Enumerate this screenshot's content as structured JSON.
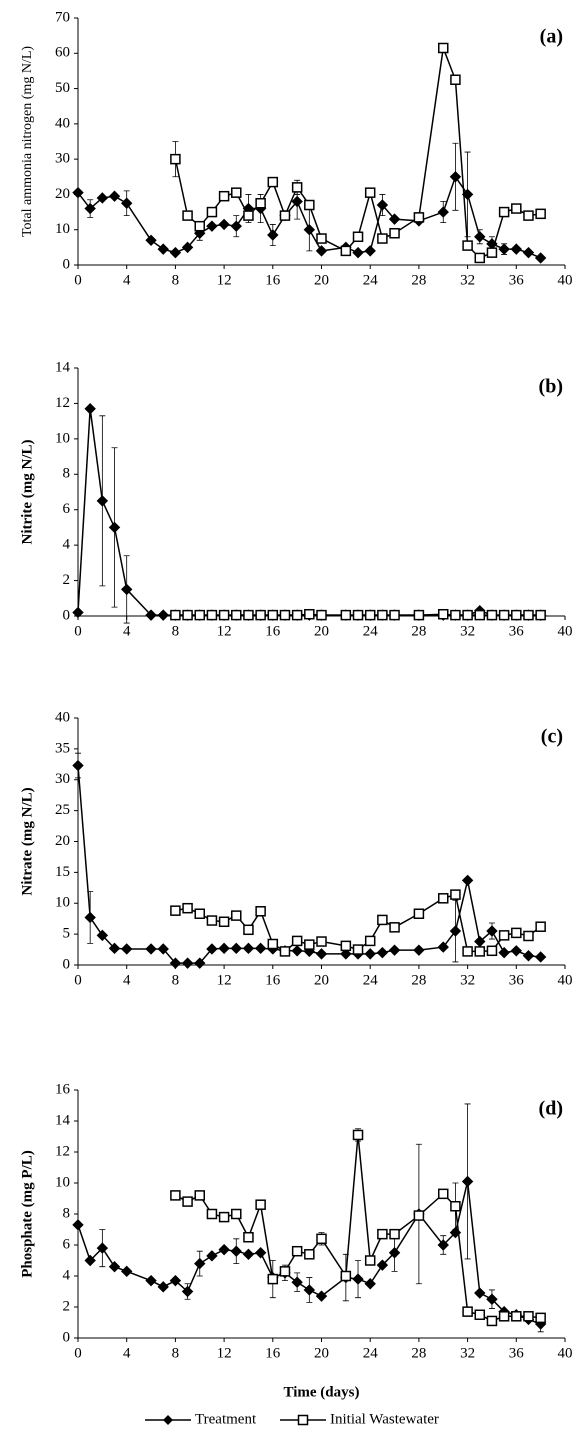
{
  "chart_data": [
    {
      "type": "line",
      "panel_label": "(a)",
      "y_label": "Total ammonia nitrogen (mg N/L)",
      "xlim": [
        0,
        40
      ],
      "xticks": [
        0,
        4,
        8,
        12,
        16,
        20,
        24,
        28,
        32,
        36,
        40
      ],
      "ylim": [
        0,
        70
      ],
      "yticks": [
        0,
        10,
        20,
        30,
        40,
        50,
        60,
        70
      ],
      "series": [
        {
          "color": "#000000",
          "marker": "diamond",
          "x": [
            0,
            1,
            2,
            3,
            4,
            6,
            7,
            8,
            9,
            10,
            11,
            12,
            13,
            14,
            15,
            16,
            17,
            18,
            19,
            20,
            22,
            23,
            24,
            25,
            26,
            28,
            30,
            31,
            32,
            33,
            34,
            35,
            36,
            37,
            38
          ],
          "values": [
            20.5,
            16,
            19,
            19.5,
            17.5,
            7,
            4.5,
            3.5,
            5,
            9,
            11,
            11.5,
            11,
            16,
            16,
            8.5,
            14,
            18,
            10,
            4,
            5,
            3.5,
            4,
            17,
            13,
            12.5,
            15,
            25,
            20,
            8,
            6,
            4.5,
            4.5,
            3.5,
            2
          ],
          "errors": [
            null,
            2.5,
            null,
            null,
            3.5,
            null,
            null,
            null,
            null,
            2,
            null,
            null,
            3,
            4,
            4,
            3,
            null,
            5,
            6,
            null,
            null,
            null,
            null,
            3,
            null,
            null,
            3,
            9.5,
            12,
            2,
            2,
            1.5,
            null,
            null,
            null
          ]
        },
        {
          "color": "#000000",
          "marker": "square",
          "x": [
            8,
            9,
            10,
            11,
            12,
            13,
            14,
            15,
            16,
            17,
            18,
            19,
            20,
            22,
            23,
            24,
            25,
            26,
            28,
            30,
            31,
            32,
            33,
            34,
            35,
            36,
            37,
            38
          ],
          "values": [
            30,
            14,
            11,
            15,
            19.5,
            20.5,
            14,
            17.5,
            23.5,
            14,
            22,
            17,
            7.5,
            4,
            8,
            20.5,
            7.5,
            9,
            13.5,
            61.5,
            52.5,
            5.5,
            2,
            3.5,
            15,
            16,
            14,
            14.5
          ],
          "errors": [
            5,
            null,
            null,
            null,
            null,
            null,
            null,
            null,
            null,
            null,
            2,
            null,
            null,
            null,
            null,
            null,
            null,
            null,
            null,
            null,
            null,
            null,
            null,
            null,
            null,
            null,
            null,
            null
          ]
        }
      ]
    },
    {
      "type": "line",
      "panel_label": "(b)",
      "y_label": "Nitrite (mg N/L)",
      "xlim": [
        0,
        40
      ],
      "xticks": [
        0,
        4,
        8,
        12,
        16,
        20,
        24,
        28,
        32,
        36,
        40
      ],
      "ylim": [
        0,
        14
      ],
      "yticks": [
        0,
        2,
        4,
        6,
        8,
        10,
        12,
        14
      ],
      "series": [
        {
          "color": "#000000",
          "marker": "diamond",
          "x": [
            0,
            1,
            2,
            3,
            4,
            6,
            7,
            8,
            9,
            10,
            11,
            12,
            13,
            14,
            15,
            16,
            17,
            18,
            19,
            20,
            22,
            23,
            24,
            25,
            26,
            28,
            30,
            31,
            32,
            33,
            34,
            35,
            36,
            37,
            38
          ],
          "values": [
            0.2,
            11.7,
            6.5,
            5,
            1.5,
            0.05,
            0.05,
            0.05,
            0.05,
            0.05,
            0.05,
            0.05,
            0.05,
            0.05,
            0.05,
            0.05,
            0.05,
            0.05,
            0.05,
            0.05,
            0.05,
            0.05,
            0.05,
            0.05,
            0.05,
            0.05,
            0.05,
            0.05,
            0.05,
            0.3,
            0.05,
            0.05,
            0.05,
            0.05,
            0.05
          ],
          "errors": [
            null,
            null,
            4.8,
            4.5,
            1.9,
            null,
            null,
            null,
            null,
            null,
            null,
            null,
            null,
            null,
            null,
            null,
            null,
            null,
            null,
            null,
            null,
            null,
            null,
            null,
            null,
            null,
            null,
            null,
            null,
            null,
            null,
            null,
            null,
            null,
            null
          ]
        },
        {
          "color": "#000000",
          "marker": "square",
          "x": [
            8,
            9,
            10,
            11,
            12,
            13,
            14,
            15,
            16,
            17,
            18,
            19,
            20,
            22,
            23,
            24,
            25,
            26,
            28,
            30,
            31,
            32,
            33,
            34,
            35,
            36,
            37,
            38
          ],
          "values": [
            0.05,
            0.05,
            0.05,
            0.05,
            0.05,
            0.05,
            0.05,
            0.05,
            0.05,
            0.05,
            0.05,
            0.1,
            0.05,
            0.05,
            0.05,
            0.05,
            0.05,
            0.05,
            0.05,
            0.1,
            0.05,
            0.05,
            0.05,
            0.05,
            0.05,
            0.05,
            0.05,
            0.05
          ]
        }
      ]
    },
    {
      "type": "line",
      "panel_label": "(c)",
      "y_label": "Nitrate (mg N/L)",
      "xlim": [
        0,
        40
      ],
      "xticks": [
        0,
        4,
        8,
        12,
        16,
        20,
        24,
        28,
        32,
        36,
        40
      ],
      "ylim": [
        0,
        40
      ],
      "yticks": [
        0,
        5,
        10,
        15,
        20,
        25,
        30,
        35,
        40
      ],
      "series": [
        {
          "color": "#000000",
          "marker": "diamond",
          "x": [
            0,
            1,
            2,
            3,
            4,
            6,
            7,
            8,
            9,
            10,
            11,
            12,
            13,
            14,
            15,
            16,
            17,
            18,
            19,
            20,
            22,
            23,
            24,
            25,
            26,
            28,
            30,
            31,
            32,
            33,
            34,
            35,
            36,
            37,
            38
          ],
          "values": [
            32.3,
            7.7,
            4.8,
            2.7,
            2.6,
            2.6,
            2.6,
            0.3,
            0.3,
            0.3,
            2.6,
            2.7,
            2.7,
            2.7,
            2.7,
            2.6,
            2.3,
            2.3,
            2.2,
            1.8,
            1.8,
            1.8,
            1.8,
            2,
            2.4,
            2.4,
            2.9,
            5.5,
            13.7,
            3.8,
            5.5,
            2,
            2.3,
            1.5,
            1.3
          ],
          "errors": [
            2,
            4.2,
            null,
            null,
            null,
            null,
            null,
            null,
            null,
            null,
            null,
            null,
            null,
            null,
            null,
            null,
            null,
            null,
            null,
            null,
            null,
            null,
            null,
            null,
            null,
            null,
            null,
            5,
            null,
            null,
            1.3,
            null,
            null,
            null,
            null
          ]
        },
        {
          "color": "#000000",
          "marker": "square",
          "x": [
            8,
            9,
            10,
            11,
            12,
            13,
            14,
            15,
            16,
            17,
            18,
            19,
            20,
            22,
            23,
            24,
            25,
            26,
            28,
            30,
            31,
            32,
            33,
            34,
            35,
            36,
            37,
            38
          ],
          "values": [
            8.8,
            9.2,
            8.3,
            7.2,
            7,
            8,
            5.7,
            8.7,
            3.4,
            2.2,
            3.9,
            3.3,
            3.8,
            3.1,
            2.5,
            3.9,
            7.3,
            6.1,
            8.3,
            10.8,
            11.4,
            2.2,
            2.2,
            2.3,
            4.8,
            5.2,
            4.7,
            6.2
          ]
        }
      ]
    },
    {
      "type": "line",
      "panel_label": "(d)",
      "y_label": "Phosphate (mg P/L)",
      "x_label": "Time (days)",
      "xlim": [
        0,
        40
      ],
      "xticks": [
        0,
        4,
        8,
        12,
        16,
        20,
        24,
        28,
        32,
        36,
        40
      ],
      "ylim": [
        0,
        16
      ],
      "yticks": [
        0,
        2,
        4,
        6,
        8,
        10,
        12,
        14,
        16
      ],
      "series": [
        {
          "name": "Treatment",
          "color": "#000000",
          "marker": "diamond",
          "x": [
            0,
            1,
            2,
            3,
            4,
            6,
            7,
            8,
            9,
            10,
            11,
            12,
            13,
            14,
            15,
            16,
            17,
            18,
            19,
            20,
            22,
            23,
            24,
            25,
            26,
            28,
            30,
            31,
            32,
            33,
            34,
            35,
            36,
            37,
            38
          ],
          "values": [
            7.3,
            5,
            5.8,
            4.6,
            4.3,
            3.7,
            3.3,
            3.7,
            3,
            4.8,
            5.3,
            5.7,
            5.6,
            5.4,
            5.5,
            3.9,
            4.2,
            3.6,
            3.1,
            2.7,
            3.9,
            3.8,
            3.5,
            4.7,
            5.5,
            8,
            6,
            6.8,
            10.1,
            2.9,
            2.5,
            1.7,
            1.5,
            1.2,
            0.9
          ],
          "errors": [
            null,
            null,
            1.2,
            null,
            null,
            null,
            null,
            null,
            0.5,
            0.8,
            null,
            null,
            0.8,
            null,
            null,
            null,
            0.5,
            0.6,
            0.8,
            null,
            1.5,
            1.2,
            null,
            null,
            1.2,
            4.5,
            0.6,
            null,
            5,
            null,
            0.6,
            null,
            null,
            null,
            0.5
          ]
        },
        {
          "name": "Initial Wastewater",
          "color": "#000000",
          "marker": "square",
          "x": [
            8,
            9,
            10,
            11,
            12,
            13,
            14,
            15,
            16,
            17,
            18,
            19,
            20,
            22,
            23,
            24,
            25,
            26,
            28,
            30,
            31,
            32,
            33,
            34,
            35,
            36,
            37,
            38
          ],
          "values": [
            9.2,
            8.8,
            9.2,
            8,
            7.8,
            8,
            6.5,
            8.6,
            3.8,
            4.3,
            5.6,
            5.4,
            6.4,
            4,
            13.1,
            5,
            6.7,
            6.7,
            7.9,
            9.3,
            8.5,
            1.7,
            1.5,
            1.1,
            1.4,
            1.4,
            1.4,
            1.3
          ],
          "errors": [
            null,
            null,
            null,
            null,
            null,
            null,
            null,
            null,
            1.2,
            null,
            null,
            null,
            0.4,
            null,
            0.4,
            null,
            null,
            null,
            null,
            null,
            1.5,
            null,
            null,
            null,
            null,
            null,
            null,
            null
          ]
        }
      ]
    }
  ]
}
